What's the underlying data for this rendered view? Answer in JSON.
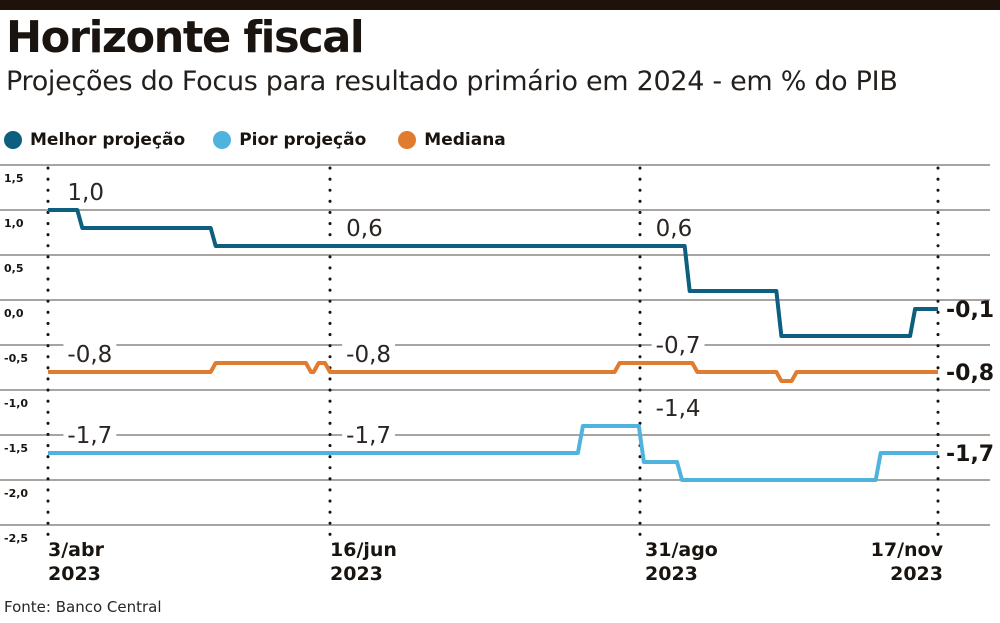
{
  "header": {
    "title": "Horizonte fiscal",
    "subtitle": "Projeções do Focus para resultado primário em 2024 - em % do PIB"
  },
  "legend": [
    {
      "label": "Melhor projeção",
      "color": "#0d5e7f"
    },
    {
      "label": "Pior projeção",
      "color": "#4fb3dd"
    },
    {
      "label": "Mediana",
      "color": "#e07b2f"
    }
  ],
  "footer": {
    "source": "Fonte: Banco Central"
  },
  "chart_data": {
    "type": "line",
    "title": "Horizonte fiscal",
    "subtitle": "Projeções do Focus para resultado primário em 2024 - em % do PIB",
    "xlabel": "",
    "ylabel": "% do PIB",
    "ylim": [
      -2.5,
      1.5
    ],
    "yticks": [
      1.5,
      1.0,
      0.5,
      0.0,
      -0.5,
      -1.0,
      -1.5,
      -2.0,
      -2.5
    ],
    "ytick_labels": [
      "1,5",
      "1,0",
      "0,5",
      "0,0",
      "-0,5",
      "-1,0",
      "-1,5",
      "-2,0",
      "-2,5"
    ],
    "grid": true,
    "legend_position": "top-left",
    "x_range": [
      "2023-04-03",
      "2023-11-17"
    ],
    "x_reference_dates": [
      {
        "date": "2023-04-03",
        "label": [
          "3/abr",
          "2023"
        ]
      },
      {
        "date": "2023-06-16",
        "label": [
          "16/jun",
          "2023"
        ]
      },
      {
        "date": "2023-08-31",
        "label": [
          "31/ago",
          "2023"
        ]
      },
      {
        "date": "2023-11-17",
        "label": [
          "17/nov",
          "2023"
        ]
      }
    ],
    "step": true,
    "series": [
      {
        "name": "Melhor projeção",
        "color": "#0d5e7f",
        "points": [
          [
            "2023-04-03",
            1.0
          ],
          [
            "2023-04-12",
            0.8
          ],
          [
            "2023-05-17",
            0.6
          ],
          [
            "2023-09-13",
            0.1
          ],
          [
            "2023-10-07",
            -0.4
          ],
          [
            "2023-11-11",
            -0.1
          ],
          [
            "2023-11-17",
            -0.1
          ]
        ],
        "annotations": [
          {
            "date": "2023-04-06",
            "value": 1.0,
            "text": "1,0"
          },
          {
            "date": "2023-06-18",
            "value": 0.6,
            "text": "0,6"
          },
          {
            "date": "2023-09-02",
            "value": 0.6,
            "text": "0,6"
          }
        ],
        "end_label": "-0,1"
      },
      {
        "name": "Pior projeção",
        "color": "#4fb3dd",
        "points": [
          [
            "2023-04-03",
            -1.7
          ],
          [
            "2023-08-17",
            -1.4
          ],
          [
            "2023-09-01",
            -1.8
          ],
          [
            "2023-09-11",
            -2.0
          ],
          [
            "2023-11-02",
            -1.7
          ],
          [
            "2023-11-17",
            -1.7
          ]
        ],
        "annotations": [
          {
            "date": "2023-04-06",
            "value": -1.7,
            "text": "-1,7"
          },
          {
            "date": "2023-06-18",
            "value": -1.7,
            "text": "-1,7"
          },
          {
            "date": "2023-09-02",
            "value": -1.4,
            "text": "-1,4"
          }
        ],
        "end_label": "-1,7"
      },
      {
        "name": "Mediana",
        "color": "#e07b2f",
        "points": [
          [
            "2023-04-03",
            -0.8
          ],
          [
            "2023-05-17",
            -0.7
          ],
          [
            "2023-06-11",
            -0.8
          ],
          [
            "2023-06-13",
            -0.7
          ],
          [
            "2023-06-16",
            -0.8
          ],
          [
            "2023-08-26",
            -0.7
          ],
          [
            "2023-09-15",
            -0.8
          ],
          [
            "2023-10-07",
            -0.9
          ],
          [
            "2023-10-11",
            -0.8
          ],
          [
            "2023-11-17",
            -0.8
          ]
        ],
        "annotations": [
          {
            "date": "2023-04-06",
            "value": -0.8,
            "text": "-0,8"
          },
          {
            "date": "2023-06-18",
            "value": -0.8,
            "text": "-0,8"
          },
          {
            "date": "2023-09-02",
            "value": -0.7,
            "text": "-0,7"
          }
        ],
        "end_label": "-0,8"
      }
    ]
  }
}
